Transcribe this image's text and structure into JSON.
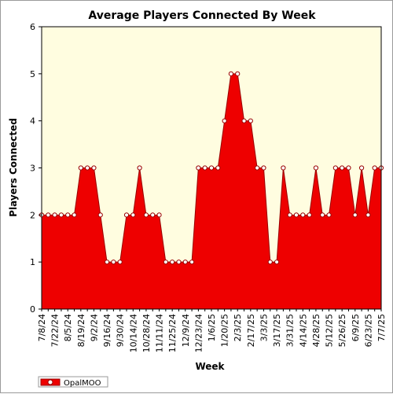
{
  "chart_data": {
    "type": "area",
    "title": "Average Players Connected By Week",
    "xlabel": "Week",
    "ylabel": "Players Connected",
    "ylim": [
      0,
      6
    ],
    "yticks": [
      0,
      1,
      2,
      3,
      4,
      5,
      6
    ],
    "grid": false,
    "legend_placement": "bottom-left",
    "background_color": "#fffde0",
    "fill_color": "#ee0000",
    "line_color": "#990000",
    "marker_fill": "#ffffff",
    "categories": [
      "7/8/24",
      "7/15/24",
      "7/22/24",
      "7/29/24",
      "8/5/24",
      "8/12/24",
      "8/19/24",
      "8/26/24",
      "9/2/24",
      "9/9/24",
      "9/16/24",
      "9/23/24",
      "9/30/24",
      "10/7/24",
      "10/14/24",
      "10/21/24",
      "10/28/24",
      "11/4/24",
      "11/11/24",
      "11/18/24",
      "11/25/24",
      "12/2/24",
      "12/9/24",
      "12/16/24",
      "12/23/24",
      "12/30/24",
      "1/6/25",
      "1/13/25",
      "1/20/25",
      "1/27/25",
      "2/3/25",
      "2/10/25",
      "2/17/25",
      "2/24/25",
      "3/3/25",
      "3/10/25",
      "3/17/25",
      "3/24/25",
      "3/31/25",
      "4/7/25",
      "4/14/25",
      "4/21/25",
      "4/28/25",
      "5/5/25",
      "5/12/25",
      "5/19/25",
      "5/26/25",
      "6/2/25",
      "6/9/25",
      "6/16/25",
      "6/23/25",
      "6/30/25",
      "7/7/25"
    ],
    "xtick_labels": [
      "7/8/24",
      "7/22/24",
      "8/5/24",
      "8/19/24",
      "9/2/24",
      "9/16/24",
      "9/30/24",
      "10/14/24",
      "10/28/24",
      "11/11/24",
      "11/25/24",
      "12/9/24",
      "12/23/24",
      "1/6/25",
      "1/20/25",
      "2/3/25",
      "2/17/25",
      "3/3/25",
      "3/17/25",
      "3/31/25",
      "4/14/25",
      "4/28/25",
      "5/12/25",
      "5/26/25",
      "6/9/25",
      "6/23/25",
      "7/7/25"
    ],
    "series": [
      {
        "name": "OpalMOO",
        "values": [
          2,
          2,
          2,
          2,
          2,
          2,
          3,
          3,
          3,
          2,
          1,
          1,
          1,
          2,
          2,
          3,
          2,
          2,
          2,
          1,
          1,
          1,
          1,
          1,
          3,
          3,
          3,
          3,
          4,
          5,
          5,
          4,
          4,
          3,
          3,
          1,
          1,
          3,
          2,
          2,
          2,
          2,
          3,
          2,
          2,
          3,
          3,
          3,
          2,
          3,
          2,
          3,
          3
        ]
      }
    ]
  }
}
